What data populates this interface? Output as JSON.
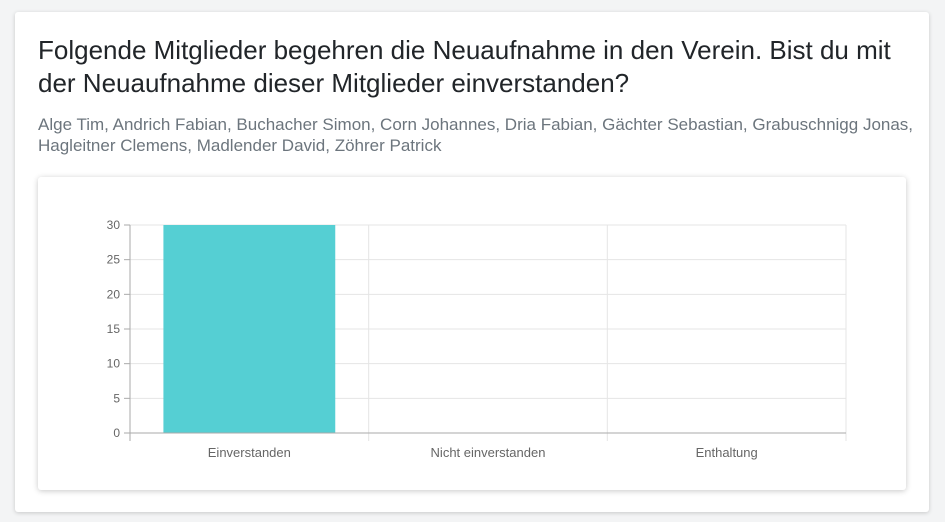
{
  "question": "Folgende Mitglieder begehren die Neuaufnahme in den Verein. Bist du mit der Neuaufnahme dieser Mitglieder einverstanden?",
  "members": "Alge Tim, Andrich Fabian, Buchacher Simon, Corn Johannes, Dria Fabian, Gächter Sebastian, Grabuschnigg Jonas, Hagleitner Clemens, Madlender David, Zöhrer Patrick",
  "colors": {
    "bar": "#55cfd3",
    "grid": "#e5e5e5",
    "axis": "#aaaaaa",
    "tick_text": "#666666"
  },
  "chart_data": {
    "type": "bar",
    "categories": [
      "Einverstanden",
      "Nicht einverstanden",
      "Enthaltung"
    ],
    "values": [
      30,
      0,
      0
    ],
    "ylim": [
      0,
      30
    ],
    "yticks": [
      0,
      5,
      10,
      15,
      20,
      25,
      30
    ],
    "grid": true,
    "legend": "none"
  }
}
